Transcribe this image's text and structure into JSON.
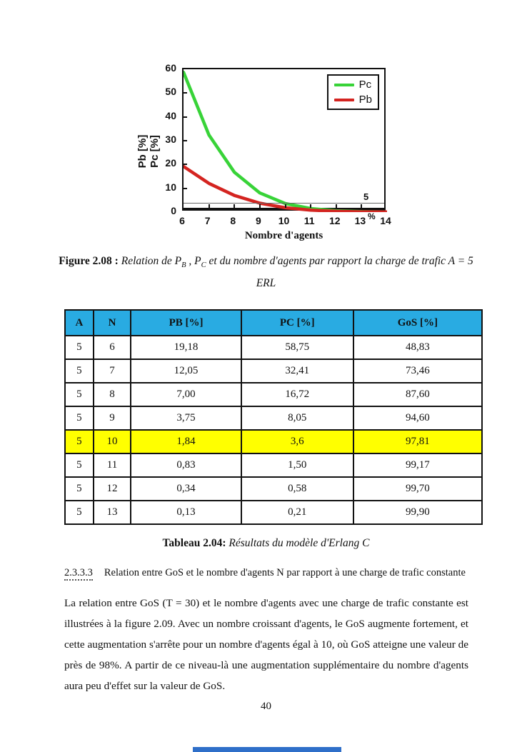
{
  "page": {
    "number": "40"
  },
  "chart": {
    "y_axis_label_line1": "Pb [%]",
    "y_axis_label_line2": "Pc [%]",
    "x_axis_label": "Nombre d'agents",
    "legend": [
      {
        "label": "Pc",
        "color": "#38d338"
      },
      {
        "label": "Pb",
        "color": "#d42420"
      }
    ],
    "threshold_value_label": "5",
    "threshold_unit_label": "%"
  },
  "chart_data": {
    "type": "line",
    "x": [
      6,
      7,
      8,
      9,
      10,
      11,
      12,
      13,
      14
    ],
    "series": [
      {
        "name": "Pc",
        "color": "#38d338",
        "values": [
          58.75,
          32.41,
          16.72,
          8.05,
          3.6,
          1.5,
          0.58,
          0.21,
          0.08
        ]
      },
      {
        "name": "Pb",
        "color": "#d42420",
        "values": [
          19.18,
          12.05,
          7.0,
          3.75,
          1.84,
          0.83,
          0.34,
          0.13,
          0.05
        ]
      }
    ],
    "title": "",
    "xlabel": "Nombre d'agents",
    "ylabel": "Pb [%] / Pc [%]",
    "xlim": [
      6,
      14
    ],
    "ylim": [
      0,
      60
    ],
    "xticks": [
      6,
      7,
      8,
      9,
      10,
      11,
      12,
      13,
      14
    ],
    "yticks": [
      0,
      10,
      20,
      30,
      40,
      50,
      60
    ],
    "threshold_line_y": 1.7,
    "threshold_annotation": "5 %",
    "legend_position": "top-right",
    "grid": false
  },
  "figure_caption": {
    "label": "Figure 2.08 :",
    "part1": " Relation de P",
    "sub1": "B",
    "part2": " , P",
    "sub2": "C",
    "part3": " et du nombre d'agents par rapport la charge de trafic A = 5",
    "line2": "ERL"
  },
  "table": {
    "headers": [
      "A",
      "N",
      "PB [%]",
      "PC [%]",
      "GoS [%]"
    ],
    "rows": [
      [
        "5",
        "6",
        "19,18",
        "58,75",
        "48,83"
      ],
      [
        "5",
        "7",
        "12,05",
        "32,41",
        "73,46"
      ],
      [
        "5",
        "8",
        "7,00",
        "16,72",
        "87,60"
      ],
      [
        "5",
        "9",
        "3,75",
        "8,05",
        "94,60"
      ],
      [
        "5",
        "10",
        "1,84",
        "3,6",
        "97,81"
      ],
      [
        "5",
        "11",
        "0,83",
        "1,50",
        "99,17"
      ],
      [
        "5",
        "12",
        "0,34",
        "0,58",
        "99,70"
      ],
      [
        "5",
        "13",
        "0,13",
        "0,21",
        "99,90"
      ]
    ],
    "highlighted_row_index": 4,
    "header_bg": "#29abe2",
    "highlight_bg": "#ffff00"
  },
  "table_caption": {
    "label": "Tableau 2.04:",
    "text": " Résultats du modèle d'Erlang C"
  },
  "section": {
    "number": "2.3.3.3",
    "title": "Relation entre GoS et le nombre d'agents N par rapport à une charge de trafic constante"
  },
  "paragraph": "La relation entre GoS (T = 30) et le nombre d'agents avec une charge de trafic constante est illustrées à la figure 2.09. Avec un nombre croissant d'agents, le GoS augmente fortement, et cette augmentation s'arrête pour un nombre d'agents égal à 10, où GoS atteigne une valeur de près de 98%. A partir de ce niveau-là une augmentation supplémentaire du nombre d'agents aura peu d'effet sur la valeur de GoS."
}
